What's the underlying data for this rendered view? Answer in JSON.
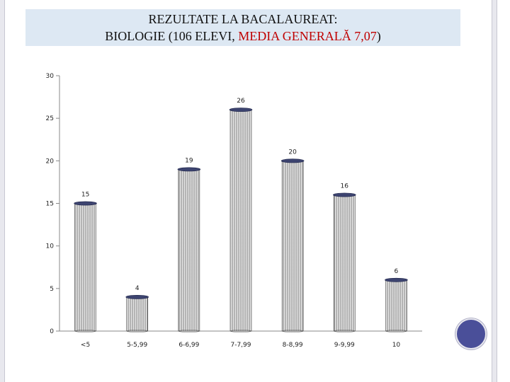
{
  "slide": {
    "title_line1": "REZULTATE LA BACALAUREAT:",
    "title_line2_a": "BIOLOGIE (106 ELEVI, ",
    "title_line2_b": "MEDIA GENERALĂ 7,07",
    "title_line2_c": ")",
    "accent_color": "#c00000",
    "title_bg": "#dde8f3",
    "circle_color": "#4a4f99"
  },
  "chart_data": {
    "type": "bar",
    "title": "",
    "xlabel": "",
    "ylabel": "",
    "ylim": [
      0,
      30
    ],
    "yticks": [
      0,
      5,
      10,
      15,
      20,
      25,
      30
    ],
    "grid": false,
    "legend": "none",
    "categories": [
      "<5",
      "5-5,99",
      "6-6,99",
      "7-7,99",
      "8-8,99",
      "9-9,99",
      "10"
    ],
    "values": [
      15,
      4,
      19,
      26,
      20,
      16,
      6
    ],
    "bar_style": "column"
  }
}
